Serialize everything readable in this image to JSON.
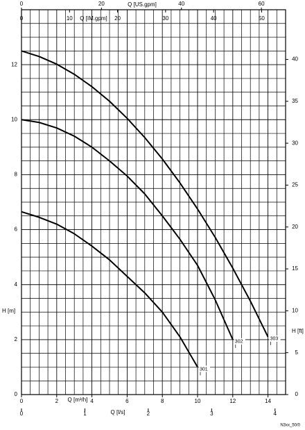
{
  "chart_data": {
    "type": "line",
    "xlabel": "Q [m³/h]",
    "ylabel": "H [m]",
    "xlim": [
      0,
      15
    ],
    "ylim": [
      0,
      14
    ],
    "xticks": [
      0,
      2,
      4,
      6,
      8,
      10,
      12,
      14
    ],
    "yticks": [
      0,
      2,
      4,
      6,
      8,
      10,
      12
    ],
    "grid": true,
    "grid_step": [
      0.5,
      0.5
    ],
    "color": "#000000",
    "x": [
      0,
      1,
      2,
      3,
      4,
      5,
      6,
      7,
      8,
      9,
      10,
      11,
      12,
      13,
      14
    ],
    "series": [
      {
        "name": "301",
        "values": [
          6.65,
          6.45,
          6.2,
          5.85,
          5.4,
          4.9,
          4.3,
          3.7,
          3.0,
          2.1,
          1.0,
          null,
          null,
          null,
          null
        ]
      },
      {
        "name": "302",
        "values": [
          10.0,
          9.9,
          9.7,
          9.4,
          9.0,
          8.5,
          7.95,
          7.3,
          6.5,
          5.65,
          4.7,
          3.45,
          2.0,
          null,
          null
        ]
      },
      {
        "name": "303",
        "values": [
          12.5,
          12.3,
          12.02,
          11.65,
          11.2,
          10.67,
          10.05,
          9.35,
          8.57,
          7.7,
          6.75,
          5.72,
          4.6,
          3.4,
          2.1
        ]
      }
    ],
    "secondary_axes": [
      {
        "label": "Q [US.gpm]",
        "position": "top",
        "lim": [
          0,
          66.05
        ],
        "ticks": [
          0,
          20,
          40,
          60
        ]
      },
      {
        "label": "Q [IM.gpm]",
        "position": "top-inner",
        "lim": [
          0,
          54.99
        ],
        "ticks": [
          0,
          10,
          20,
          30,
          40,
          50
        ]
      },
      {
        "label": "Q [l/s]",
        "position": "bottom-outer",
        "lim": [
          0,
          4.1667
        ],
        "ticks": [
          0,
          1,
          2,
          3,
          4
        ]
      },
      {
        "label": "H [ft]",
        "position": "right",
        "lim": [
          0,
          45.93
        ],
        "ticks": [
          0,
          5,
          10,
          15,
          20,
          25,
          30,
          35,
          40
        ]
      }
    ],
    "code": "N3xx_50/0"
  }
}
